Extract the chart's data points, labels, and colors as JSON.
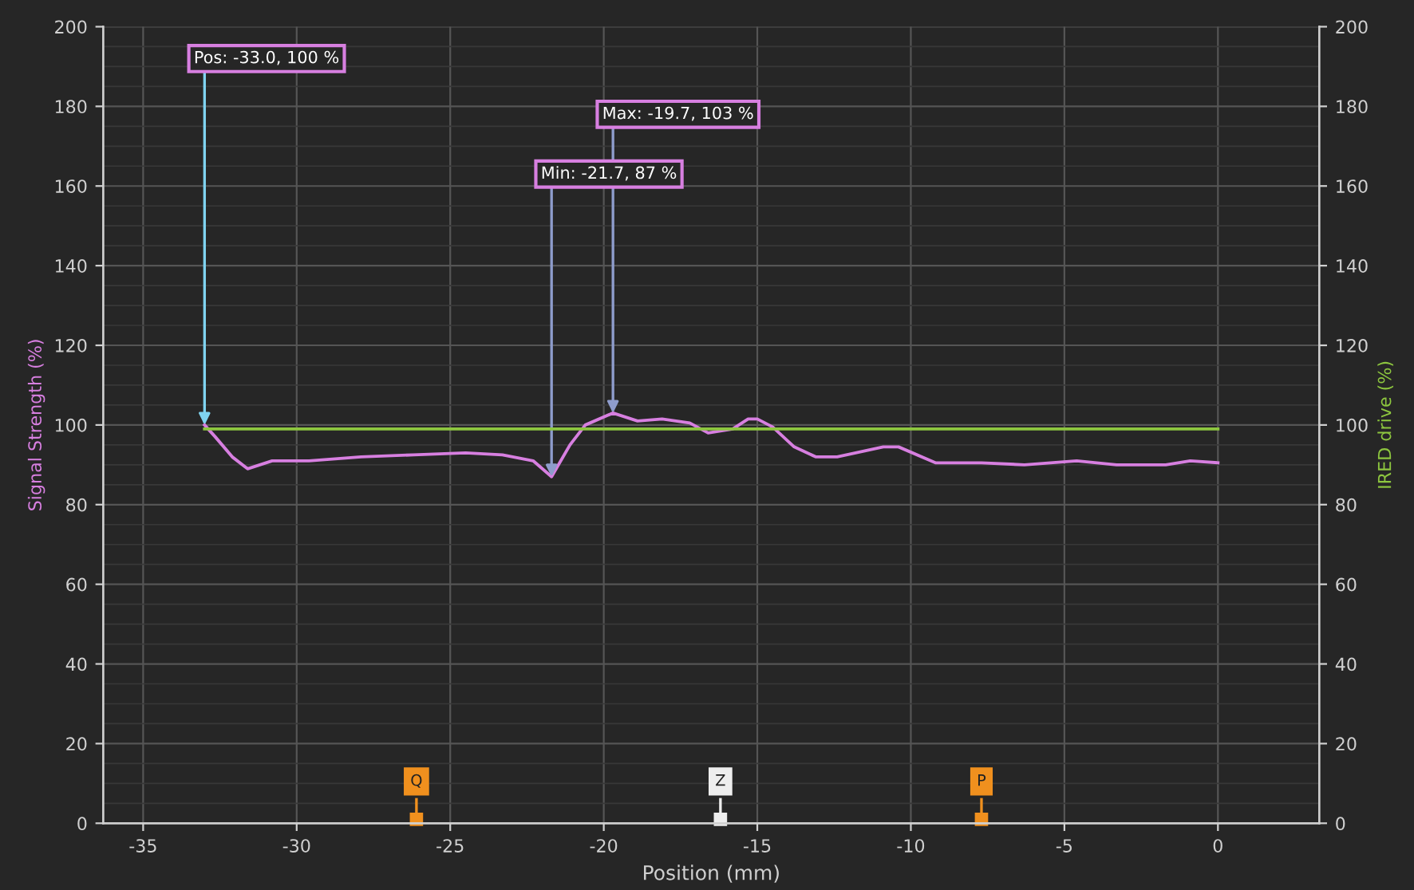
{
  "chart_data": {
    "type": "line",
    "xlabel": "Position (mm)",
    "ylabel": "Signal Strength (%)",
    "y2label": "IRED drive (%)",
    "xlim": [
      -36.3,
      3.3
    ],
    "xticks": [
      -35,
      -30,
      -25,
      -20,
      -15,
      -10,
      -5,
      0
    ],
    "ylim": [
      0,
      200
    ],
    "yticks": [
      0,
      20,
      40,
      60,
      80,
      100,
      120,
      140,
      160,
      180,
      200
    ],
    "y2lim": [
      0,
      200
    ],
    "y2ticks": [
      0,
      20,
      40,
      60,
      80,
      100,
      120,
      140,
      160,
      180,
      200
    ],
    "grid": true,
    "series": [
      {
        "color": "#d77fe0",
        "x": [
          -33.0,
          -32.65,
          -32.1,
          -31.6,
          -30.8,
          -29.6,
          -27.9,
          -26.2,
          -24.5,
          -23.3,
          -22.3,
          -21.7,
          -21.1,
          -20.6,
          -19.7,
          -18.9,
          -18.1,
          -17.2,
          -16.6,
          -15.8,
          -15.3,
          -15.0,
          -14.5,
          -13.8,
          -13.1,
          -12.4,
          -10.9,
          -10.4,
          -9.2,
          -7.7,
          -6.3,
          -4.6,
          -3.3,
          -1.7,
          -0.9,
          0
        ],
        "values": [
          100,
          97,
          92,
          89,
          91,
          91,
          92,
          92.5,
          93,
          92.5,
          91,
          87,
          95,
          100,
          103,
          101,
          101.5,
          100.5,
          98,
          99,
          101.5,
          101.5,
          99.5,
          94.5,
          92,
          92,
          94.5,
          94.5,
          90.5,
          90.5,
          90,
          91,
          90,
          90,
          91,
          90.5
        ]
      },
      {
        "color": "#8dc63f",
        "axis": "y2",
        "x": [
          -33.0,
          0
        ],
        "values": [
          99,
          99
        ]
      }
    ],
    "annotations": [
      {
        "text": "Pos: -33.0, 100 %",
        "x": -33.0,
        "y": 100
      },
      {
        "text": "Min: -21.7, 87 %",
        "x": -21.7,
        "y": 87
      },
      {
        "text": "Max: -19.7, 103 %",
        "x": -19.7,
        "y": 103
      }
    ],
    "ref_lines": [
      {
        "axis": "x",
        "value": -26.1,
        "label": "Q",
        "color": "#f0901e"
      },
      {
        "axis": "x",
        "value": -16.2,
        "label": "Z",
        "color": "#eeeeee"
      },
      {
        "axis": "x",
        "value": -7.7,
        "label": "P",
        "color": "#f0901e"
      }
    ]
  }
}
